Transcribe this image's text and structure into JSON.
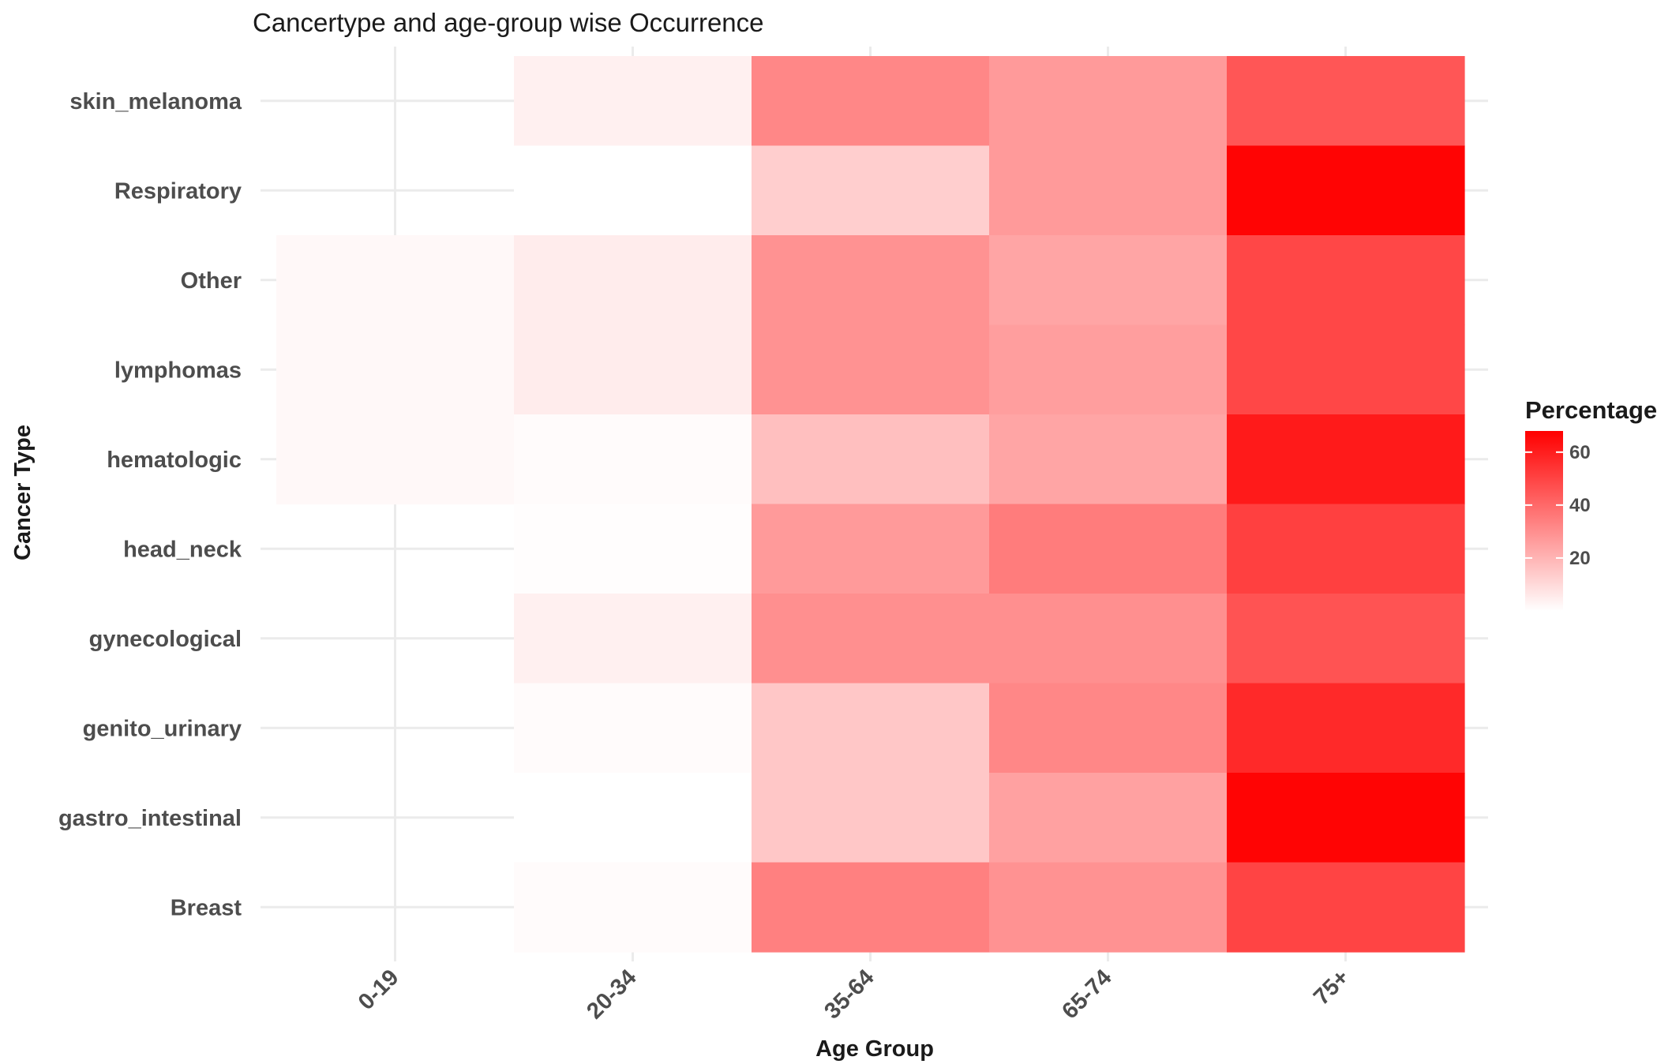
{
  "chart_data": {
    "type": "heatmap",
    "title": "Cancertype and age-group wise Occurrence",
    "xlabel": "Age Group",
    "ylabel": "Cancer Type",
    "x_categories": [
      "0-19",
      "20-34",
      "35-64",
      "65-74",
      "75+"
    ],
    "y_categories": [
      "skin_melanoma",
      "Respiratory",
      "Other",
      "lymphomas",
      "hematologic",
      "head_neck",
      "gynecological",
      "genito_urinary",
      "gastro_intestinal",
      "Breast"
    ],
    "values": [
      [
        null,
        4,
        32,
        27,
        45
      ],
      [
        null,
        0,
        13,
        27,
        67
      ],
      [
        2,
        5,
        29,
        24,
        49
      ],
      [
        2,
        5,
        29,
        26,
        49
      ],
      [
        2,
        1,
        17,
        24,
        61
      ],
      [
        null,
        0.5,
        27,
        35,
        51
      ],
      [
        null,
        4,
        30,
        30,
        46
      ],
      [
        null,
        1,
        15,
        32,
        57
      ],
      [
        null,
        0,
        15,
        25,
        67
      ],
      [
        null,
        1,
        34,
        29,
        50
      ]
    ],
    "color_scale": {
      "low": "#ffffff",
      "high": "#ff0000",
      "min": 0,
      "max": 68
    },
    "legend": {
      "title": "Percentage",
      "position": "right",
      "ticks": [
        20,
        40,
        60
      ]
    },
    "grid": true
  }
}
